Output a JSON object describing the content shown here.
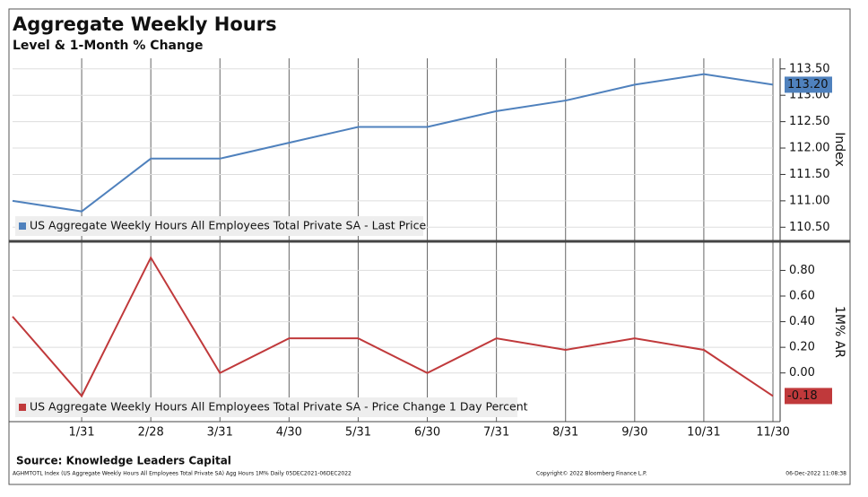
{
  "chart_data": {
    "type": "line",
    "title": "Aggregate Weekly Hours",
    "subtitle": "Level & 1-Month % Change",
    "categories": [
      null,
      "1/31",
      "2/28",
      "3/31",
      "4/30",
      "5/31",
      "6/30",
      "7/31",
      "8/31",
      "9/30",
      "10/31",
      "11/30"
    ],
    "grid": true,
    "panels": [
      {
        "y_label": "Index",
        "ylim": [
          110.25,
          113.7
        ],
        "yticks": [
          {
            "value": 110.5,
            "label": "110.50"
          },
          {
            "value": 111,
            "label": "111.00"
          },
          {
            "value": 111.5,
            "label": "111.50"
          },
          {
            "value": 112,
            "label": "112.00"
          },
          {
            "value": 112.5,
            "label": "112.50"
          },
          {
            "value": 113,
            "label": "113.00"
          },
          {
            "value": 113.5,
            "label": "113.50"
          }
        ],
        "series": [
          {
            "name": "US Aggregate Weekly Hours All Employees Total Private SA - Last Price",
            "color": "#4f81bd",
            "values": [
              111.0,
              110.8,
              111.8,
              111.8,
              112.1,
              112.4,
              112.4,
              112.7,
              112.9,
              113.2,
              113.4,
              113.2
            ],
            "value_labels": [
              null,
              null,
              null,
              null,
              null,
              null,
              null,
              null,
              null,
              null,
              null,
              "113.20"
            ]
          }
        ]
      },
      {
        "y_label": "1M% AR",
        "ylim": [
          -0.38,
          1.02
        ],
        "yticks": [
          {
            "value": 0,
            "label": "0.00"
          },
          {
            "value": 0.2,
            "label": "0.20"
          },
          {
            "value": 0.4,
            "label": "0.40"
          },
          {
            "value": 0.6,
            "label": "0.60"
          },
          {
            "value": 0.8,
            "label": "0.80"
          }
        ],
        "series": [
          {
            "name": "US Aggregate Weekly Hours All Employees Total Private SA - Price Change 1 Day Percent",
            "color": "#c0393b",
            "values": [
              0.44,
              -0.18,
              0.9,
              0.0,
              0.27,
              0.27,
              0.0,
              0.27,
              0.18,
              0.27,
              0.18,
              -0.18
            ],
            "value_labels": [
              null,
              null,
              null,
              null,
              null,
              null,
              null,
              null,
              null,
              null,
              null,
              "-0.18"
            ]
          }
        ]
      }
    ],
    "source": "Source: Knowledge Leaders Capital",
    "footer_left": "AGHMTOTL Index (US Aggregate Weekly Hours All Employees Total Private SA) Agg Hours 1M% Daily 05DEC2021-06DEC2022",
    "footer_center": "Copyright© 2022 Bloomberg Finance L.P.",
    "footer_right": "06-Dec-2022 11:08:38"
  }
}
